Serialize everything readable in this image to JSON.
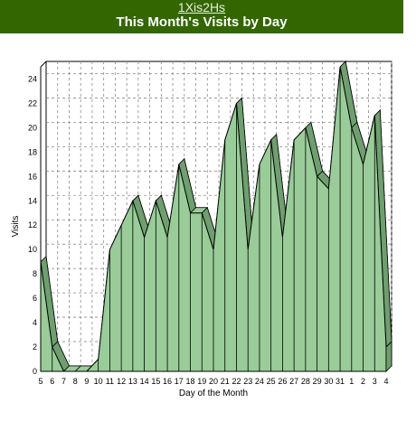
{
  "header": {
    "site_name": "1Xis2Hs",
    "title": "This Month's Visits by Day"
  },
  "colors": {
    "header_bg": "#336600",
    "area_fill": "#99cc99",
    "area_side": "#6f9f6f",
    "outline": "#000000"
  },
  "chart_data": {
    "type": "area",
    "title": "This Month's Visits by Day",
    "xlabel": "Day of the Month",
    "ylabel": "Visits",
    "ylim": [
      0,
      25
    ],
    "yticks": [
      0,
      2,
      4,
      6,
      8,
      10,
      12,
      14,
      16,
      18,
      20,
      22,
      24
    ],
    "grid": true,
    "legend": "none",
    "categories": [
      "5",
      "6",
      "7",
      "8",
      "9",
      "10",
      "11",
      "12",
      "13",
      "14",
      "15",
      "16",
      "17",
      "18",
      "19",
      "20",
      "21",
      "22",
      "23",
      "24",
      "25",
      "26",
      "27",
      "28",
      "29",
      "30",
      "31",
      "1",
      "2",
      "3",
      "4"
    ],
    "values": [
      9,
      2,
      0,
      0,
      0,
      1,
      10,
      12,
      14,
      11,
      14,
      11,
      17,
      13,
      13,
      10,
      19,
      22,
      10,
      17,
      19,
      11,
      19,
      20,
      16,
      15,
      25,
      20,
      17,
      21,
      2
    ]
  }
}
